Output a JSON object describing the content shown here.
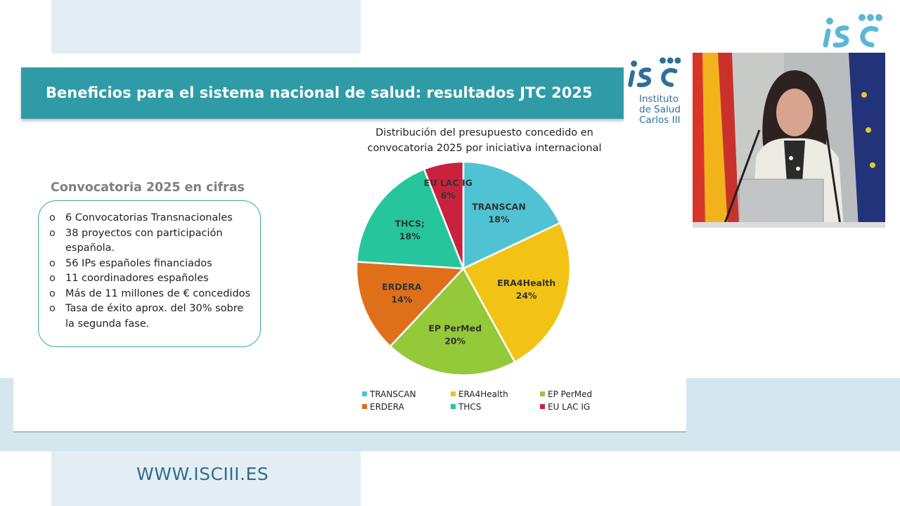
{
  "slide": {
    "title": "Beneficios para el sistema nacional de salud: resultados JTC 2025",
    "logo_lines": [
      "Instituto",
      "de Salud",
      "Carlos III"
    ],
    "stats_heading": "Convocatoria 2025 en cifras",
    "bullet_symbol": "o",
    "stats": [
      "6 Convocatorias Transnacionales",
      "38 proyectos con participación española.",
      "56 IPs españoles financiados",
      "11 coordinadores españoles",
      "Más de 11 millones de € concedidos",
      "Tasa de éxito aprox. del 30% sobre la segunda fase."
    ],
    "chart_title_lines": [
      "Distribución del presupuesto concedido en",
      "convocatoria 2025 por iniciativa internacional"
    ]
  },
  "chart_data": {
    "type": "pie",
    "title": "Distribución del presupuesto concedido en convocatoria 2025 por iniciativa internacional",
    "slices": [
      {
        "label": "TRANSCAN",
        "data_label": "TRANSCAN\n18%",
        "value": 18,
        "color": "#4fc3d3"
      },
      {
        "label": "ERA4Health",
        "data_label": "ERA4Health\n24%",
        "value": 24,
        "color": "#f2c315"
      },
      {
        "label": "EP PerMed",
        "data_label": "EP PerMed\n20%",
        "value": 20,
        "color": "#94c93a"
      },
      {
        "label": "ERDERA",
        "data_label": "ERDERA\n14%",
        "value": 14,
        "color": "#e06f1a"
      },
      {
        "label": "THCS",
        "data_label": "THCS;\n18%",
        "value": 18,
        "color": "#27c59b"
      },
      {
        "label": "EU LAC IG",
        "data_label": "EU LAC IG\n6%",
        "value": 6,
        "color": "#c9223f"
      }
    ],
    "legend_position": "bottom",
    "start_angle_deg": 0,
    "direction": "clockwise"
  },
  "footer": {
    "url": "WWW.ISCIII.ES"
  },
  "colors": {
    "header_bg": "#2f9ba7",
    "brand_blue": "#2e6f9a",
    "logo_cyan": "#5ab8d6",
    "stats_border": "#3aa5a5",
    "band_bg": "#d4e6ee"
  }
}
